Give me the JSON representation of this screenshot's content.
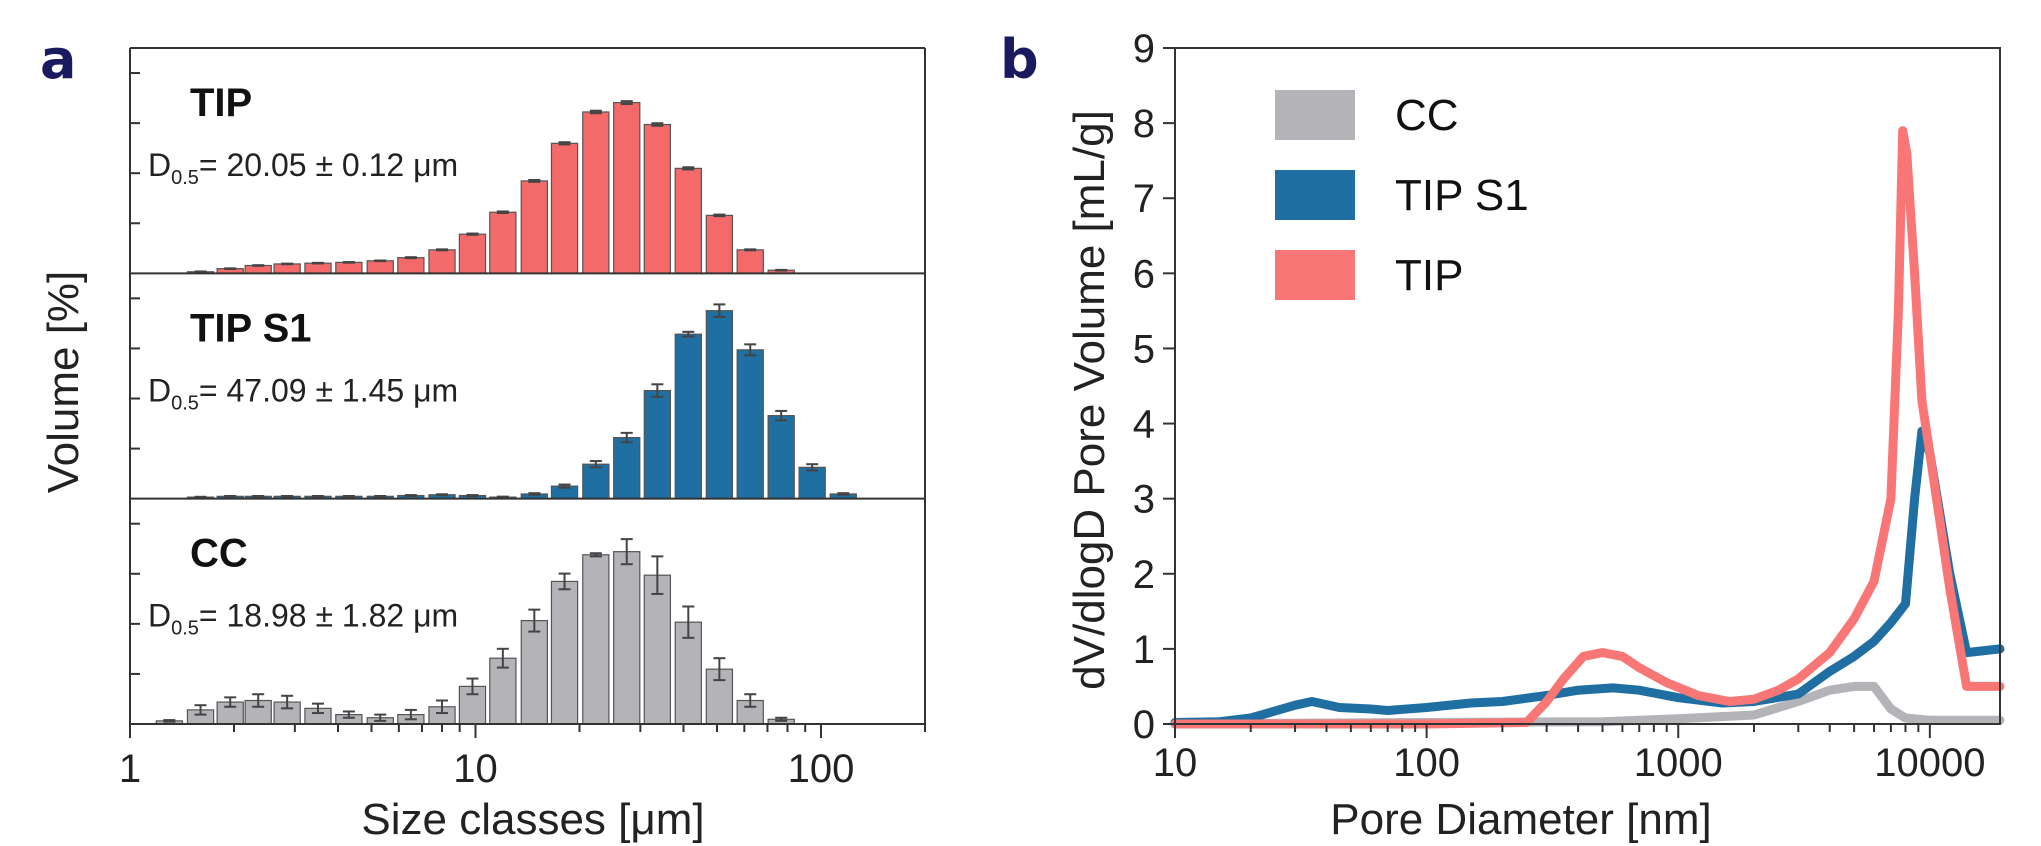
{
  "panels": {
    "a": {
      "letter": "a"
    },
    "b": {
      "letter": "b"
    }
  },
  "chart_data": [
    {
      "type": "bar",
      "panel": "a",
      "xlabel": "Size classes [μm]",
      "ylabel": "Volume [%]",
      "xscale": "log",
      "xlim": [
        1,
        200
      ],
      "xticks": [
        {
          "value": 1,
          "label": "1"
        },
        {
          "value": 10,
          "label": "10"
        },
        {
          "value": 100,
          "label": "100"
        }
      ],
      "x": [
        1.3,
        1.6,
        1.95,
        2.35,
        2.85,
        3.5,
        4.3,
        5.3,
        6.5,
        8.0,
        9.8,
        12.0,
        14.8,
        18.1,
        22.3,
        27.4,
        33.6,
        41.3,
        50.8,
        62.4,
        76.7,
        94.3,
        116
      ],
      "subplots": [
        {
          "name": "TIP",
          "d50_prefix": "D",
          "d50_sub": "0.5",
          "d50_value": "= 20.05 ± 0.12 μm",
          "color": "#f46a6a",
          "ymax": 14,
          "values": [
            0,
            0.1,
            0.3,
            0.5,
            0.6,
            0.65,
            0.7,
            0.8,
            1.0,
            1.5,
            2.5,
            3.9,
            5.9,
            8.3,
            10.3,
            10.9,
            9.5,
            6.7,
            3.7,
            1.5,
            0.2,
            0,
            0
          ],
          "errors": [
            0,
            0.02,
            0.02,
            0.02,
            0.02,
            0.02,
            0.02,
            0.02,
            0.03,
            0.03,
            0.04,
            0.05,
            0.06,
            0.07,
            0.08,
            0.09,
            0.08,
            0.07,
            0.05,
            0.03,
            0.02,
            0,
            0
          ]
        },
        {
          "name": "TIP S1",
          "d50_prefix": "D",
          "d50_sub": "0.5",
          "d50_value": "= 47.09 ± 1.45 μm",
          "color": "#1f6fa3",
          "ymax": 14,
          "values": [
            0,
            0.1,
            0.15,
            0.15,
            0.15,
            0.15,
            0.15,
            0.15,
            0.2,
            0.25,
            0.2,
            0.1,
            0.3,
            0.8,
            2.2,
            3.9,
            6.9,
            10.5,
            12.0,
            9.5,
            5.3,
            2.0,
            0.3
          ],
          "errors": [
            0,
            0.02,
            0.02,
            0.02,
            0.02,
            0.02,
            0.02,
            0.02,
            0.03,
            0.03,
            0.03,
            0.03,
            0.05,
            0.1,
            0.2,
            0.3,
            0.4,
            0.15,
            0.4,
            0.35,
            0.3,
            0.2,
            0.05
          ]
        },
        {
          "name": "CC",
          "d50_prefix": "D",
          "d50_sub": "0.5",
          "d50_value": "= 18.98 ± 1.82 μm",
          "color": "#b3b3b8",
          "ymax": 14,
          "values": [
            0.2,
            0.9,
            1.4,
            1.5,
            1.4,
            1.0,
            0.6,
            0.4,
            0.6,
            1.1,
            2.4,
            4.2,
            6.6,
            9.1,
            10.8,
            11.0,
            9.5,
            6.5,
            3.5,
            1.5,
            0.3,
            0,
            0
          ],
          "errors": [
            0.05,
            0.3,
            0.3,
            0.4,
            0.4,
            0.3,
            0.2,
            0.2,
            0.3,
            0.4,
            0.5,
            0.6,
            0.7,
            0.5,
            0.1,
            0.8,
            1.2,
            1.0,
            0.7,
            0.4,
            0.1,
            0,
            0
          ]
        }
      ]
    },
    {
      "type": "line",
      "panel": "b",
      "xlabel": "Pore Diameter [nm]",
      "ylabel": "dV/dlogD Pore Volume [mL/g]",
      "xscale": "log",
      "xlim": [
        10,
        19000
      ],
      "ylim": [
        0,
        9
      ],
      "xticks": [
        {
          "value": 10,
          "label": "10"
        },
        {
          "value": 100,
          "label": "100"
        },
        {
          "value": 1000,
          "label": "1000"
        },
        {
          "value": 10000,
          "label": "10000"
        }
      ],
      "yticks": [
        0,
        1,
        2,
        3,
        4,
        5,
        6,
        7,
        8,
        9
      ],
      "legend_position": "top-left",
      "series": [
        {
          "name": "CC",
          "color": "#b3b3b8",
          "points": [
            [
              10,
              0
            ],
            [
              100,
              0.02
            ],
            [
              500,
              0.03
            ],
            [
              1000,
              0.07
            ],
            [
              2000,
              0.12
            ],
            [
              3000,
              0.3
            ],
            [
              4000,
              0.45
            ],
            [
              5000,
              0.5
            ],
            [
              6000,
              0.5
            ],
            [
              7000,
              0.2
            ],
            [
              8000,
              0.08
            ],
            [
              10000,
              0.05
            ],
            [
              19000,
              0.05
            ]
          ]
        },
        {
          "name": "TIP S1",
          "color": "#1f6fa3",
          "points": [
            [
              10,
              0.02
            ],
            [
              15,
              0.03
            ],
            [
              20,
              0.08
            ],
            [
              30,
              0.25
            ],
            [
              35,
              0.3
            ],
            [
              45,
              0.22
            ],
            [
              60,
              0.2
            ],
            [
              70,
              0.18
            ],
            [
              100,
              0.22
            ],
            [
              150,
              0.28
            ],
            [
              200,
              0.3
            ],
            [
              300,
              0.38
            ],
            [
              400,
              0.45
            ],
            [
              550,
              0.48
            ],
            [
              700,
              0.45
            ],
            [
              1000,
              0.35
            ],
            [
              1500,
              0.28
            ],
            [
              2000,
              0.3
            ],
            [
              3000,
              0.4
            ],
            [
              4000,
              0.7
            ],
            [
              5000,
              0.9
            ],
            [
              6000,
              1.1
            ],
            [
              7000,
              1.35
            ],
            [
              8000,
              1.6
            ],
            [
              8700,
              3.0
            ],
            [
              9300,
              3.9
            ],
            [
              10000,
              3.6
            ],
            [
              12000,
              2.0
            ],
            [
              14000,
              0.95
            ],
            [
              19000,
              1.0
            ]
          ]
        },
        {
          "name": "TIP",
          "color": "#f97676",
          "points": [
            [
              10,
              0
            ],
            [
              100,
              0
            ],
            [
              250,
              0.02
            ],
            [
              300,
              0.3
            ],
            [
              350,
              0.6
            ],
            [
              420,
              0.9
            ],
            [
              500,
              0.95
            ],
            [
              600,
              0.9
            ],
            [
              700,
              0.75
            ],
            [
              900,
              0.55
            ],
            [
              1200,
              0.38
            ],
            [
              1600,
              0.3
            ],
            [
              2000,
              0.33
            ],
            [
              2500,
              0.45
            ],
            [
              3000,
              0.6
            ],
            [
              4000,
              0.95
            ],
            [
              5000,
              1.4
            ],
            [
              6000,
              1.9
            ],
            [
              7000,
              3.0
            ],
            [
              7500,
              5.5
            ],
            [
              7800,
              7.9
            ],
            [
              8100,
              7.6
            ],
            [
              8700,
              6.0
            ],
            [
              9300,
              4.3
            ],
            [
              10000,
              3.6
            ],
            [
              12000,
              1.8
            ],
            [
              14000,
              0.5
            ],
            [
              19000,
              0.5
            ]
          ]
        }
      ]
    }
  ]
}
